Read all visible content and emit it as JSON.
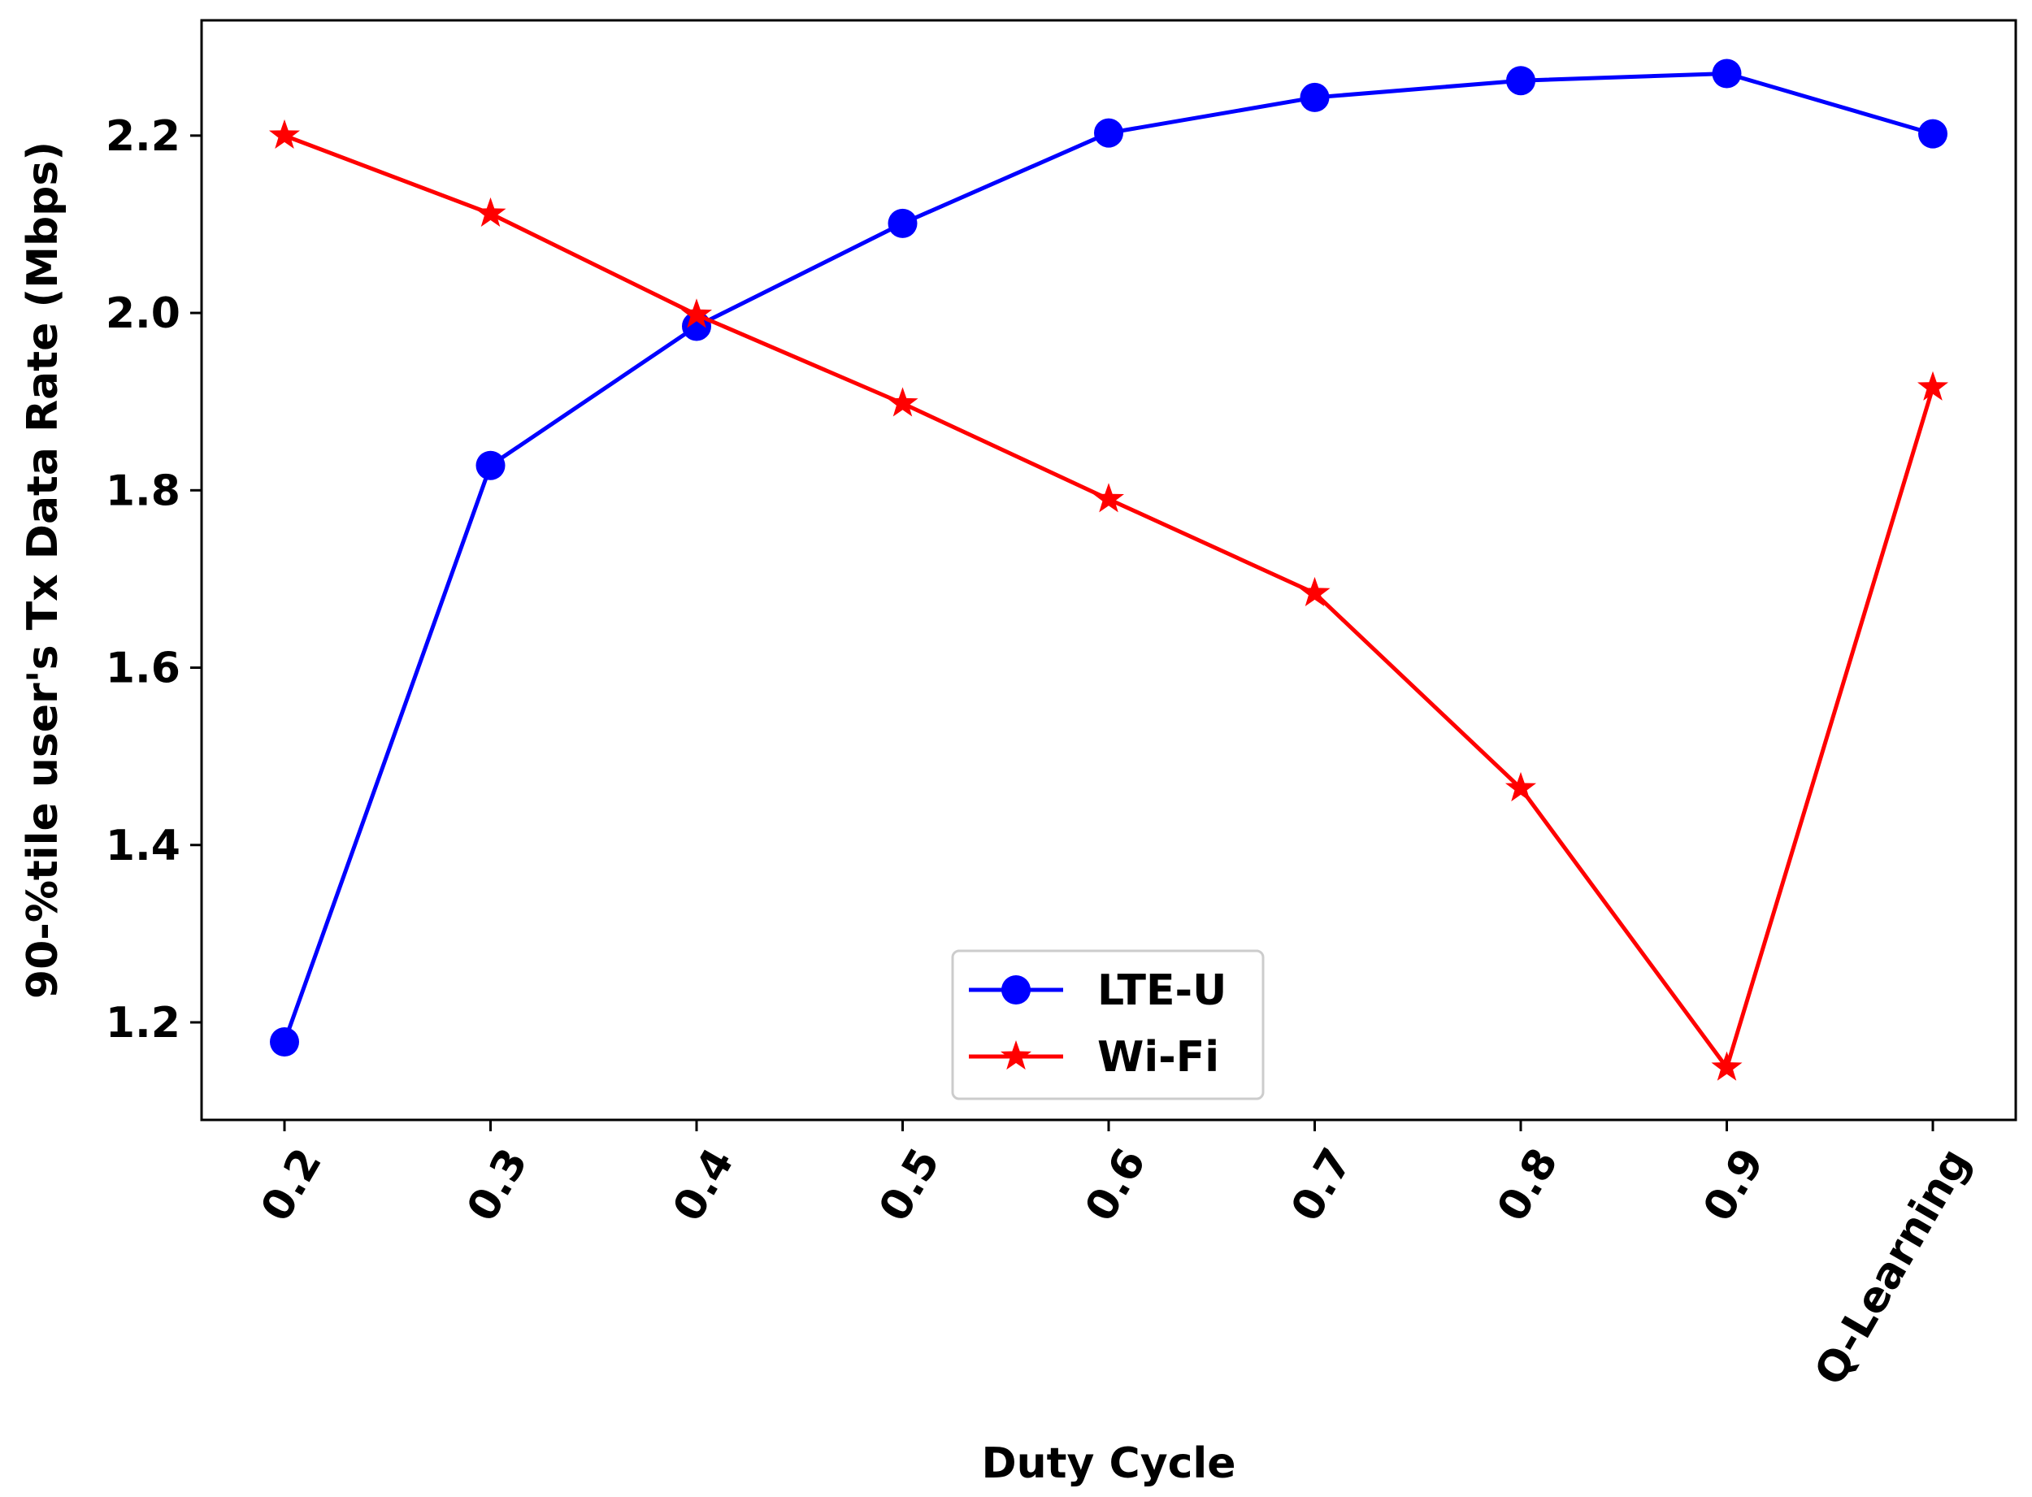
{
  "chart_data": {
    "type": "line",
    "title": "",
    "xlabel": "Duty Cycle",
    "ylabel": "90-%tile user's Tx Data Rate (Mbps)",
    "categories": [
      "0.2",
      "0.3",
      "0.4",
      "0.5",
      "0.6",
      "0.7",
      "0.8",
      "0.9",
      "Q-Learning"
    ],
    "ylim": [
      1.09,
      2.33
    ],
    "yticks": [
      1.2,
      1.4,
      1.6,
      1.8,
      2.0,
      2.2
    ],
    "ytick_labels": [
      "1.2",
      "1.4",
      "1.6",
      "1.8",
      "2.0",
      "2.2"
    ],
    "grid": false,
    "legend_position": "lower-center",
    "series": [
      {
        "name": "LTE-U",
        "color": "#0000ff",
        "marker": "circle",
        "values": [
          1.178,
          1.828,
          1.985,
          2.101,
          2.203,
          2.243,
          2.262,
          2.27,
          2.202
        ]
      },
      {
        "name": "Wi-Fi",
        "color": "#ff0000",
        "marker": "star",
        "values": [
          2.2,
          2.112,
          1.998,
          1.898,
          1.79,
          1.684,
          1.464,
          1.149,
          1.916
        ]
      }
    ]
  }
}
